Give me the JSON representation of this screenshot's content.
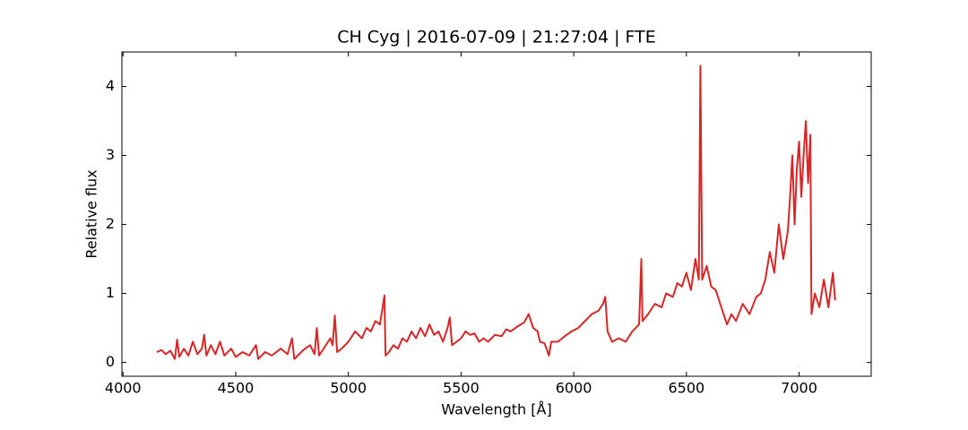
{
  "chart_data": {
    "type": "line",
    "title": "CH Cyg | 2016-07-09 | 21:27:04 | FTE",
    "x_label": "Wavelength [Å]",
    "y_label": "Relative flux",
    "xlim": [
      3995,
      7320
    ],
    "ylim": [
      -0.2,
      4.5
    ],
    "xticks": [
      4000,
      4500,
      5000,
      5500,
      6000,
      6500,
      7000
    ],
    "yticks": [
      0,
      1,
      2,
      3,
      4
    ],
    "series": [
      {
        "name": "CH Cyg",
        "color": "#d62728",
        "x": [
          4150,
          4170,
          4190,
          4210,
          4230,
          4240,
          4250,
          4270,
          4290,
          4310,
          4330,
          4350,
          4360,
          4370,
          4390,
          4410,
          4430,
          4450,
          4480,
          4500,
          4530,
          4560,
          4590,
          4600,
          4630,
          4660,
          4700,
          4730,
          4750,
          4760,
          4800,
          4830,
          4850,
          4860,
          4870,
          4900,
          4920,
          4930,
          4940,
          4950,
          4970,
          5000,
          5030,
          5060,
          5080,
          5100,
          5120,
          5140,
          5160,
          5165,
          5180,
          5200,
          5220,
          5240,
          5260,
          5280,
          5300,
          5320,
          5340,
          5360,
          5380,
          5400,
          5420,
          5440,
          5450,
          5460,
          5480,
          5500,
          5520,
          5540,
          5560,
          5580,
          5600,
          5620,
          5650,
          5680,
          5700,
          5720,
          5750,
          5780,
          5800,
          5820,
          5840,
          5850,
          5870,
          5890,
          5900,
          5930,
          5960,
          5990,
          6020,
          6050,
          6080,
          6110,
          6130,
          6140,
          6150,
          6170,
          6200,
          6230,
          6260,
          6290,
          6300,
          6305,
          6330,
          6360,
          6390,
          6410,
          6440,
          6460,
          6480,
          6500,
          6520,
          6540,
          6555,
          6562,
          6570,
          6590,
          6610,
          6630,
          6660,
          6680,
          6700,
          6720,
          6750,
          6780,
          6810,
          6830,
          6850,
          6870,
          6890,
          6910,
          6930,
          6950,
          6960,
          6970,
          6980,
          6990,
          7000,
          7010,
          7020,
          7030,
          7040,
          7050,
          7055,
          7070,
          7090,
          7110,
          7130,
          7150,
          7160
        ],
        "values": [
          0.15,
          0.18,
          0.12,
          0.17,
          0.05,
          0.33,
          0.08,
          0.2,
          0.1,
          0.3,
          0.12,
          0.2,
          0.4,
          0.1,
          0.25,
          0.12,
          0.3,
          0.1,
          0.2,
          0.08,
          0.15,
          0.1,
          0.25,
          0.05,
          0.15,
          0.1,
          0.2,
          0.12,
          0.35,
          0.05,
          0.18,
          0.25,
          0.12,
          0.5,
          0.1,
          0.25,
          0.35,
          0.25,
          0.68,
          0.15,
          0.2,
          0.3,
          0.45,
          0.35,
          0.5,
          0.45,
          0.6,
          0.55,
          0.97,
          0.1,
          0.15,
          0.25,
          0.2,
          0.35,
          0.3,
          0.45,
          0.35,
          0.5,
          0.38,
          0.55,
          0.4,
          0.45,
          0.3,
          0.5,
          0.65,
          0.25,
          0.3,
          0.35,
          0.45,
          0.4,
          0.42,
          0.3,
          0.35,
          0.3,
          0.4,
          0.38,
          0.48,
          0.45,
          0.52,
          0.58,
          0.7,
          0.5,
          0.45,
          0.3,
          0.28,
          0.1,
          0.3,
          0.3,
          0.38,
          0.45,
          0.5,
          0.6,
          0.7,
          0.75,
          0.85,
          0.95,
          0.45,
          0.3,
          0.35,
          0.3,
          0.45,
          0.55,
          1.5,
          0.6,
          0.7,
          0.85,
          0.8,
          1.0,
          0.95,
          1.15,
          1.1,
          1.3,
          1.05,
          1.5,
          1.2,
          4.3,
          1.2,
          1.4,
          1.1,
          1.05,
          0.75,
          0.55,
          0.7,
          0.6,
          0.85,
          0.7,
          0.95,
          1.0,
          1.2,
          1.6,
          1.3,
          2.0,
          1.5,
          1.9,
          2.4,
          3.0,
          2.0,
          2.8,
          3.2,
          2.4,
          3.0,
          3.5,
          2.6,
          3.3,
          0.7,
          1.0,
          0.8,
          1.2,
          0.8,
          1.3,
          0.9
        ]
      }
    ]
  }
}
